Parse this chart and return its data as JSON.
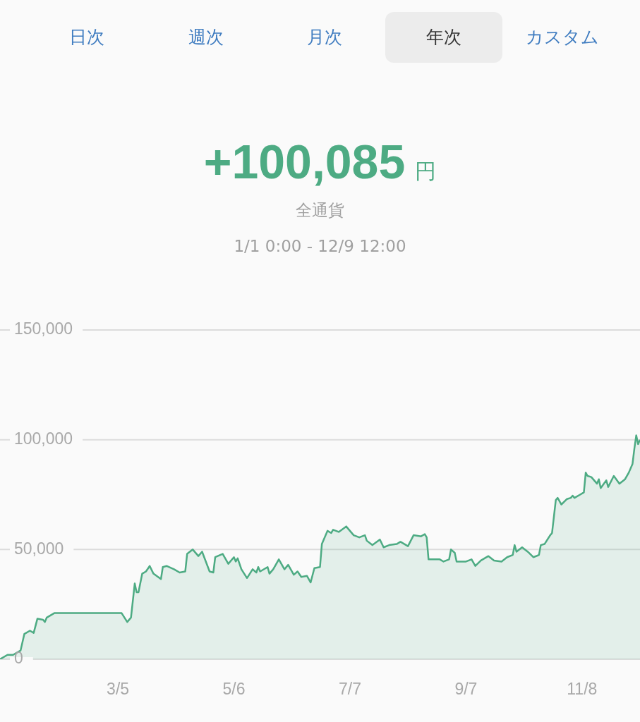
{
  "chart_data": {
    "type": "area",
    "title": "+100,085 円",
    "subtitle": "全通貨\n1/1 0:00 - 12/9 12:00",
    "annotations": [
      "日次",
      "週次",
      "月次",
      "年次",
      "カスタム"
    ],
    "x": [
      "--01-01",
      "--01-05",
      "--01-08",
      "--01-12",
      "--01-14",
      "--01-17",
      "--01-19",
      "--01-21",
      "--01-24",
      "--01-25",
      "--01-26",
      "--01-30",
      "--03-07",
      "--03-10",
      "--03-12",
      "--03-14",
      "--03-15",
      "--03-16",
      "--03-18",
      "--03-20",
      "--03-22",
      "--03-24",
      "--03-28",
      "--03-29",
      "--03-31",
      "--04-04",
      "--04-07",
      "--04-10",
      "--04-11",
      "--04-14",
      "--04-17",
      "--04-19",
      "--04-23",
      "--04-25",
      "--04-26",
      "--04-30",
      "--05-03",
      "--05-06",
      "--05-07",
      "--05-08",
      "--05-10",
      "--05-13",
      "--05-16",
      "--05-18",
      "--05-19",
      "--05-20",
      "--05-24",
      "--05-25",
      "--05-27",
      "--05-30",
      "--06-02",
      "--06-04",
      "--06-07",
      "--06-09",
      "--06-11",
      "--06-14",
      "--06-16",
      "--06-18",
      "--06-21",
      "--06-22",
      "--06-25",
      "--06-27",
      "--06-28",
      "--07-01",
      "--07-05",
      "--07-09",
      "--07-12",
      "--07-15",
      "--07-16",
      "--07-19",
      "--07-23",
      "--07-25",
      "--07-28",
      "--08-01",
      "--08-03",
      "--08-07",
      "--08-10",
      "--08-14",
      "--08-16",
      "--08-17",
      "--08-18",
      "--08-24",
      "--08-26",
      "--08-29",
      "--08-30",
      "--09-01",
      "--09-02",
      "--09-07",
      "--09-10",
      "--09-12",
      "--09-15",
      "--09-19",
      "--09-22",
      "--09-26",
      "--09-29",
      "--10-02",
      "--10-03",
      "--10-04",
      "--10-07",
      "--10-10",
      "--10-13",
      "--10-16",
      "--10-17",
      "--10-19",
      "--10-22",
      "--10-23",
      "--10-25",
      "--10-26",
      "--10-28",
      "--10-31",
      "--11-02",
      "--11-03",
      "--11-04",
      "--11-07",
      "--11-09",
      "--11-10",
      "--11-11",
      "--11-13",
      "--11-16",
      "--11-17",
      "--11-18",
      "--11-21",
      "--11-22",
      "--11-25",
      "--11-28",
      "--12-01",
      "--12-03",
      "--12-05",
      "--12-06",
      "--12-07",
      "--12-08",
      "--12-09"
    ],
    "series": [
      {
        "color": "#4dab83",
        "values": [
          0,
          2000,
          2000,
          4000,
          11500,
          13000,
          12000,
          18500,
          18000,
          17000,
          19000,
          21000,
          21000,
          17000,
          19000,
          34500,
          30500,
          30500,
          39000,
          40000,
          42500,
          39000,
          36500,
          42000,
          42500,
          41000,
          39500,
          40000,
          48000,
          50000,
          47000,
          49000,
          40000,
          39500,
          46500,
          48000,
          43500,
          46500,
          44500,
          46000,
          41000,
          37000,
          41000,
          39500,
          42000,
          40000,
          42000,
          39000,
          41000,
          45500,
          41000,
          43000,
          38500,
          40000,
          37500,
          38000,
          35000,
          41500,
          42000,
          52500,
          58500,
          57500,
          59000,
          58000,
          60500,
          56500,
          55500,
          56500,
          54000,
          52000,
          54500,
          51000,
          52000,
          52500,
          53500,
          51500,
          56500,
          56000,
          57000,
          55500,
          45500,
          45500,
          44500,
          45500,
          50000,
          48500,
          44500,
          44500,
          45500,
          42500,
          45000,
          47000,
          45000,
          44500,
          46500,
          47500,
          52000,
          49000,
          51000,
          49000,
          46500,
          47500,
          52000,
          52500,
          56500,
          57500,
          72500,
          73500,
          70500,
          73000,
          73500,
          74500,
          73500,
          75000,
          76000,
          85000,
          83500,
          83000,
          80000,
          82000,
          78000,
          81500,
          78500,
          83500,
          80000,
          82000,
          85000,
          89000,
          96000,
          102000,
          98000,
          100000
        ]
      }
    ],
    "xlim": [
      "--01-01",
      "--12-09"
    ],
    "xticks": [
      {
        "value": "--03-05",
        "label": "3/5"
      },
      {
        "value": "--05-06",
        "label": "5/6"
      },
      {
        "value": "--07-07",
        "label": "7/7"
      },
      {
        "value": "--09-07",
        "label": "9/7"
      },
      {
        "value": "--11-08",
        "label": "11/8"
      }
    ],
    "ylim": [
      0,
      150000
    ],
    "yticks": [
      {
        "value": 0,
        "label": "0"
      },
      {
        "value": 50000,
        "label": "50,000"
      },
      {
        "value": 100000,
        "label": "100,000"
      },
      {
        "value": 150000,
        "label": "150,000"
      }
    ],
    "grid": "y",
    "legend": false,
    "marker": "none",
    "line_style": "solid"
  }
}
